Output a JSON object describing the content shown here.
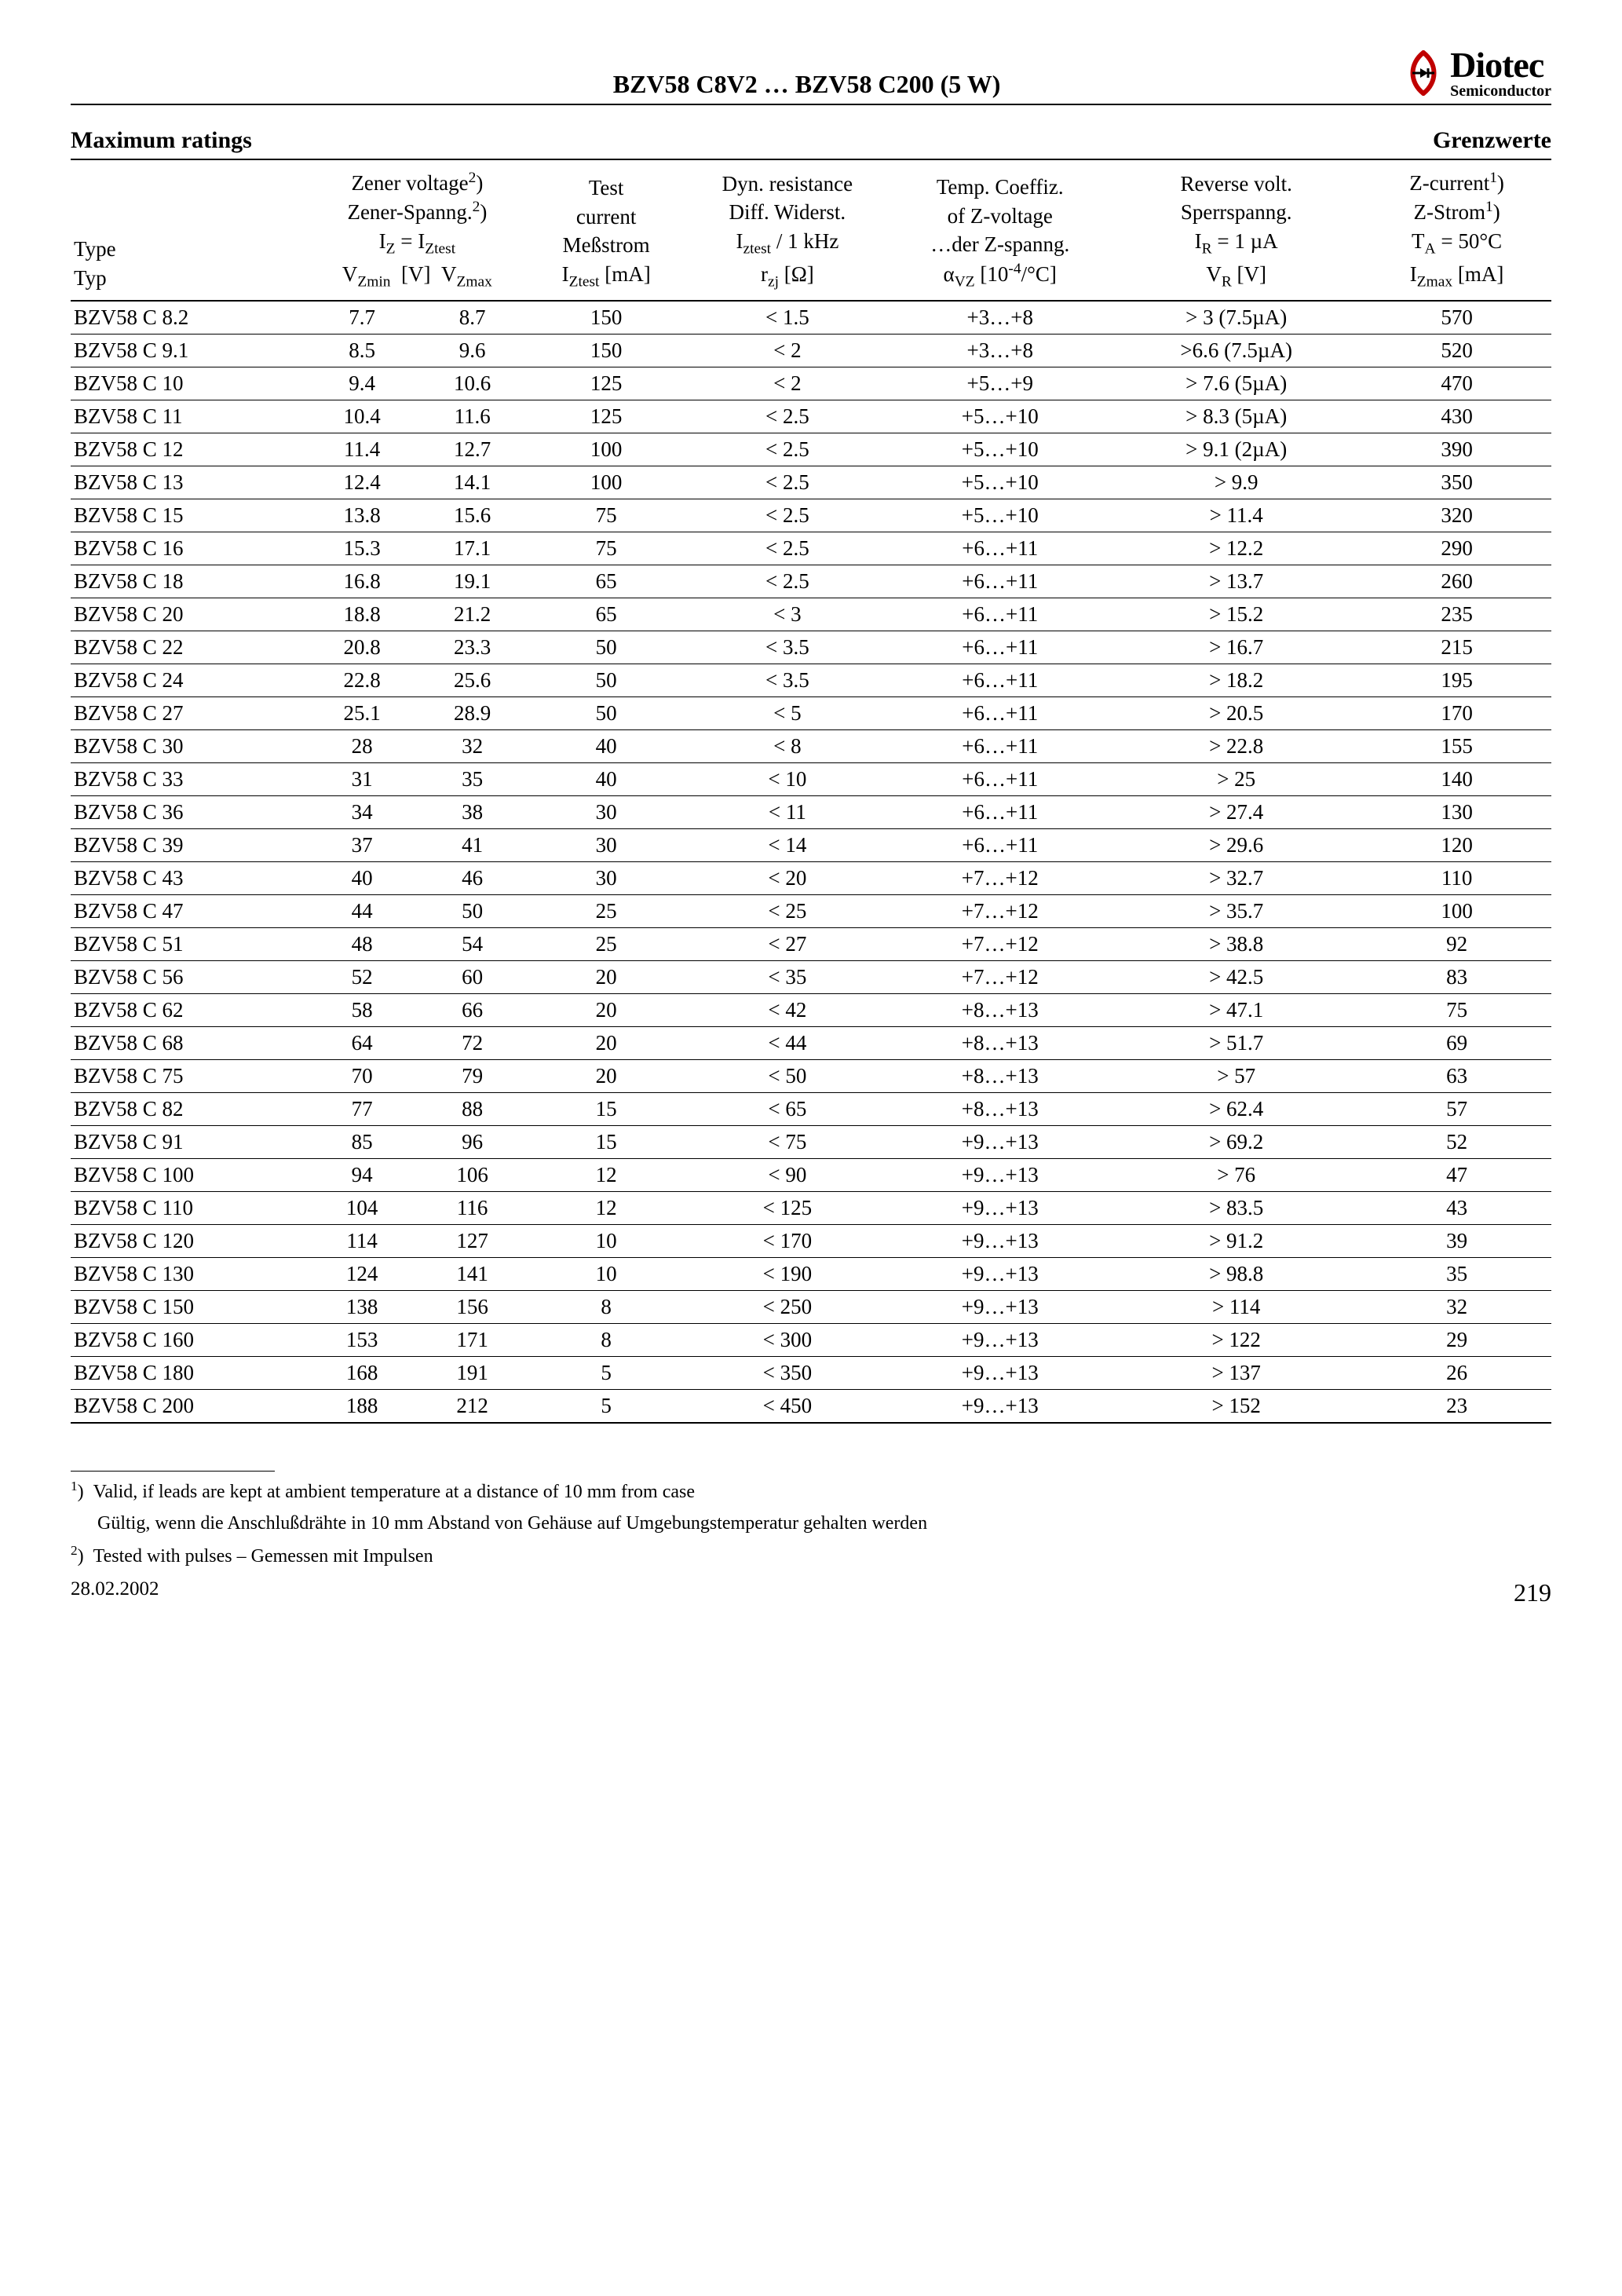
{
  "header": {
    "title": "BZV58 C8V2 … BZV58 C200 (5 W)",
    "logo_main": "Diotec",
    "logo_sub": "Semiconductor"
  },
  "section": {
    "left": "Maximum ratings",
    "right": "Grenzwerte"
  },
  "table": {
    "rows": [
      {
        "type": "BZV58 C 8.2",
        "vzmin": "7.7",
        "vzmax": "8.7",
        "iz": "150",
        "rzj": "< 1.5",
        "alpha": "+3…+8",
        "vr": "> 3 (7.5µA)",
        "izmax": "570"
      },
      {
        "type": "BZV58 C 9.1",
        "vzmin": "8.5",
        "vzmax": "9.6",
        "iz": "150",
        "rzj": "< 2",
        "alpha": "+3…+8",
        "vr": ">6.6 (7.5µA)",
        "izmax": "520"
      },
      {
        "type": "BZV58 C 10",
        "vzmin": "9.4",
        "vzmax": "10.6",
        "iz": "125",
        "rzj": "< 2",
        "alpha": "+5…+9",
        "vr": "> 7.6 (5µA)",
        "izmax": "470"
      },
      {
        "type": "BZV58 C 11",
        "vzmin": "10.4",
        "vzmax": "11.6",
        "iz": "125",
        "rzj": "< 2.5",
        "alpha": "+5…+10",
        "vr": "> 8.3 (5µA)",
        "izmax": "430"
      },
      {
        "type": "BZV58 C 12",
        "vzmin": "11.4",
        "vzmax": "12.7",
        "iz": "100",
        "rzj": "< 2.5",
        "alpha": "+5…+10",
        "vr": "> 9.1 (2µA)",
        "izmax": "390"
      },
      {
        "type": "BZV58 C 13",
        "vzmin": "12.4",
        "vzmax": "14.1",
        "iz": "100",
        "rzj": "< 2.5",
        "alpha": "+5…+10",
        "vr": "> 9.9",
        "izmax": "350"
      },
      {
        "type": "BZV58 C 15",
        "vzmin": "13.8",
        "vzmax": "15.6",
        "iz": "75",
        "rzj": "< 2.5",
        "alpha": "+5…+10",
        "vr": "> 11.4",
        "izmax": "320"
      },
      {
        "type": "BZV58 C 16",
        "vzmin": "15.3",
        "vzmax": "17.1",
        "iz": "75",
        "rzj": "< 2.5",
        "alpha": "+6…+11",
        "vr": "> 12.2",
        "izmax": "290"
      },
      {
        "type": "BZV58 C 18",
        "vzmin": "16.8",
        "vzmax": "19.1",
        "iz": "65",
        "rzj": "< 2.5",
        "alpha": "+6…+11",
        "vr": "> 13.7",
        "izmax": "260"
      },
      {
        "type": "BZV58 C 20",
        "vzmin": "18.8",
        "vzmax": "21.2",
        "iz": "65",
        "rzj": "< 3",
        "alpha": "+6…+11",
        "vr": "> 15.2",
        "izmax": "235"
      },
      {
        "type": "BZV58 C 22",
        "vzmin": "20.8",
        "vzmax": "23.3",
        "iz": "50",
        "rzj": "< 3.5",
        "alpha": "+6…+11",
        "vr": "> 16.7",
        "izmax": "215"
      },
      {
        "type": "BZV58 C 24",
        "vzmin": "22.8",
        "vzmax": "25.6",
        "iz": "50",
        "rzj": "< 3.5",
        "alpha": "+6…+11",
        "vr": "> 18.2",
        "izmax": "195"
      },
      {
        "type": "BZV58 C 27",
        "vzmin": "25.1",
        "vzmax": "28.9",
        "iz": "50",
        "rzj": "< 5",
        "alpha": "+6…+11",
        "vr": "> 20.5",
        "izmax": "170"
      },
      {
        "type": "BZV58 C 30",
        "vzmin": "28",
        "vzmax": "32",
        "iz": "40",
        "rzj": "< 8",
        "alpha": "+6…+11",
        "vr": "> 22.8",
        "izmax": "155"
      },
      {
        "type": "BZV58 C 33",
        "vzmin": "31",
        "vzmax": "35",
        "iz": "40",
        "rzj": "< 10",
        "alpha": "+6…+11",
        "vr": "> 25",
        "izmax": "140"
      },
      {
        "type": "BZV58 C 36",
        "vzmin": "34",
        "vzmax": "38",
        "iz": "30",
        "rzj": "< 11",
        "alpha": "+6…+11",
        "vr": "> 27.4",
        "izmax": "130"
      },
      {
        "type": "BZV58 C 39",
        "vzmin": "37",
        "vzmax": "41",
        "iz": "30",
        "rzj": "< 14",
        "alpha": "+6…+11",
        "vr": "> 29.6",
        "izmax": "120"
      },
      {
        "type": "BZV58 C 43",
        "vzmin": "40",
        "vzmax": "46",
        "iz": "30",
        "rzj": "< 20",
        "alpha": "+7…+12",
        "vr": "> 32.7",
        "izmax": "110"
      },
      {
        "type": "BZV58 C 47",
        "vzmin": "44",
        "vzmax": "50",
        "iz": "25",
        "rzj": "< 25",
        "alpha": "+7…+12",
        "vr": "> 35.7",
        "izmax": "100"
      },
      {
        "type": "BZV58 C 51",
        "vzmin": "48",
        "vzmax": "54",
        "iz": "25",
        "rzj": "< 27",
        "alpha": "+7…+12",
        "vr": "> 38.8",
        "izmax": "92"
      },
      {
        "type": "BZV58 C 56",
        "vzmin": "52",
        "vzmax": "60",
        "iz": "20",
        "rzj": "< 35",
        "alpha": "+7…+12",
        "vr": "> 42.5",
        "izmax": "83"
      },
      {
        "type": "BZV58 C 62",
        "vzmin": "58",
        "vzmax": "66",
        "iz": "20",
        "rzj": "< 42",
        "alpha": "+8…+13",
        "vr": "> 47.1",
        "izmax": "75"
      },
      {
        "type": "BZV58 C 68",
        "vzmin": "64",
        "vzmax": "72",
        "iz": "20",
        "rzj": "< 44",
        "alpha": "+8…+13",
        "vr": "> 51.7",
        "izmax": "69"
      },
      {
        "type": "BZV58 C 75",
        "vzmin": "70",
        "vzmax": "79",
        "iz": "20",
        "rzj": "< 50",
        "alpha": "+8…+13",
        "vr": "> 57",
        "izmax": "63"
      },
      {
        "type": "BZV58 C 82",
        "vzmin": "77",
        "vzmax": "88",
        "iz": "15",
        "rzj": "< 65",
        "alpha": "+8…+13",
        "vr": "> 62.4",
        "izmax": "57"
      },
      {
        "type": "BZV58 C 91",
        "vzmin": "85",
        "vzmax": "96",
        "iz": "15",
        "rzj": "< 75",
        "alpha": "+9…+13",
        "vr": "> 69.2",
        "izmax": "52"
      },
      {
        "type": "BZV58 C 100",
        "vzmin": "94",
        "vzmax": "106",
        "iz": "12",
        "rzj": "< 90",
        "alpha": "+9…+13",
        "vr": "> 76",
        "izmax": "47"
      },
      {
        "type": "BZV58 C 110",
        "vzmin": "104",
        "vzmax": "116",
        "iz": "12",
        "rzj": "< 125",
        "alpha": "+9…+13",
        "vr": "> 83.5",
        "izmax": "43"
      },
      {
        "type": "BZV58 C 120",
        "vzmin": "114",
        "vzmax": "127",
        "iz": "10",
        "rzj": "< 170",
        "alpha": "+9…+13",
        "vr": "> 91.2",
        "izmax": "39"
      },
      {
        "type": "BZV58 C 130",
        "vzmin": "124",
        "vzmax": "141",
        "iz": "10",
        "rzj": "< 190",
        "alpha": "+9…+13",
        "vr": "> 98.8",
        "izmax": "35"
      },
      {
        "type": "BZV58 C 150",
        "vzmin": "138",
        "vzmax": "156",
        "iz": "8",
        "rzj": "< 250",
        "alpha": "+9…+13",
        "vr": "> 114",
        "izmax": "32"
      },
      {
        "type": "BZV58 C 160",
        "vzmin": "153",
        "vzmax": "171",
        "iz": "8",
        "rzj": "< 300",
        "alpha": "+9…+13",
        "vr": "> 122",
        "izmax": "29"
      },
      {
        "type": "BZV58 C 180",
        "vzmin": "168",
        "vzmax": "191",
        "iz": "5",
        "rzj": "< 350",
        "alpha": "+9…+13",
        "vr": "> 137",
        "izmax": "26"
      },
      {
        "type": "BZV58 C 200",
        "vzmin": "188",
        "vzmax": "212",
        "iz": "5",
        "rzj": "< 450",
        "alpha": "+9…+13",
        "vr": "> 152",
        "izmax": "23"
      }
    ]
  },
  "footnotes": {
    "fn1a": "Valid, if leads are kept at ambient temperature at a distance of 10 mm from case",
    "fn1b": "Gültig, wenn die Anschlußdrähte in 10 mm Abstand von Gehäuse auf Umgebungstemperatur gehalten werden",
    "fn2": "Tested with pulses – Gemessen mit Impulsen"
  },
  "footer": {
    "date": "28.02.2002",
    "page": "219"
  },
  "headers": {
    "type_en": "Type",
    "type_de": "Typ",
    "zv_en": "Zener voltage",
    "zv_de": "Zener-Spanng.",
    "test_en": "Test",
    "test_mid": "current",
    "test_de": "Meßstrom",
    "dyn_en": "Dyn. resistance",
    "dyn_de": "Diff. Widerst.",
    "dyn_cond": "/ 1 kHz",
    "tc_en": "Temp. Coeffiz.",
    "tc_mid": "of Z-voltage",
    "tc_de": "…der Z-spanng.",
    "rv_en": "Reverse volt.",
    "rv_de": "Sperrspanng.",
    "zc_en": "Z-current",
    "zc_de": "Z-Strom"
  }
}
